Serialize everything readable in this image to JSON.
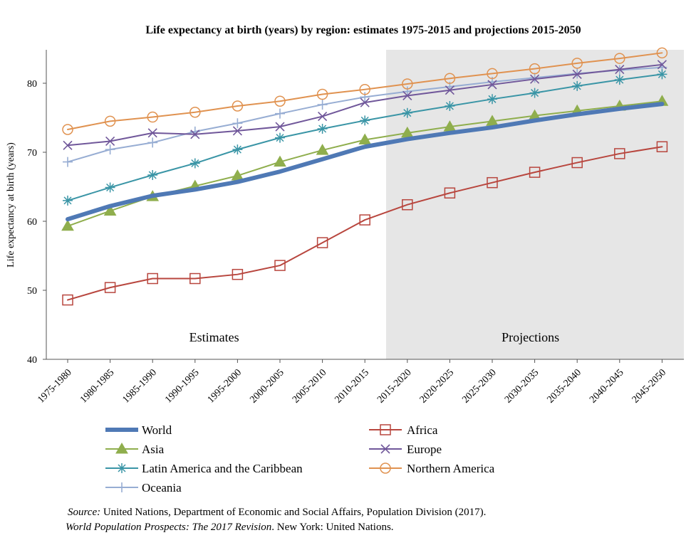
{
  "chart_data": {
    "type": "line",
    "title": "Life expectancy at birth (years) by region: estimates 1975-2015 and projections 2015-2050",
    "ylabel": "Life expectancy at birth (years)",
    "xlabel": "",
    "ylim": [
      40,
      85
    ],
    "yticks": [
      40,
      50,
      60,
      70,
      80
    ],
    "categories": [
      "1975-1980",
      "1980-1985",
      "1985-1990",
      "1990-1995",
      "1995-2000",
      "2000-2005",
      "2005-2010",
      "2010-2015",
      "2015-2020",
      "2020-2025",
      "2025-2030",
      "2030-2035",
      "2035-2040",
      "2040-2045",
      "2045-2050"
    ],
    "regions": [
      {
        "label": "Estimates",
        "from": 0,
        "to": 7
      },
      {
        "label": "Projections",
        "from": 8,
        "to": 14
      }
    ],
    "legend": "bottom",
    "grid": false,
    "series": [
      {
        "name": "World",
        "color": "#4F79B5",
        "marker": "none",
        "values": [
          60.3,
          62.2,
          63.7,
          64.6,
          65.7,
          67.2,
          69.0,
          70.8,
          71.9,
          72.8,
          73.6,
          74.6,
          75.5,
          76.3,
          77.0
        ]
      },
      {
        "name": "Africa",
        "color": "#B8463E",
        "marker": "square",
        "values": [
          48.6,
          50.4,
          51.7,
          51.7,
          52.3,
          53.6,
          56.9,
          60.2,
          62.4,
          64.1,
          65.6,
          67.1,
          68.5,
          69.8,
          70.8
        ]
      },
      {
        "name": "Asia",
        "color": "#8FAE4D",
        "marker": "triangle",
        "values": [
          59.3,
          61.5,
          63.6,
          65.1,
          66.6,
          68.6,
          70.3,
          71.8,
          72.8,
          73.7,
          74.5,
          75.3,
          76.0,
          76.7,
          77.4
        ]
      },
      {
        "name": "Europe",
        "color": "#70579A",
        "marker": "x",
        "values": [
          71.0,
          71.6,
          72.8,
          72.6,
          73.1,
          73.7,
          75.2,
          77.2,
          78.2,
          79.0,
          79.8,
          80.6,
          81.3,
          82.0,
          82.7
        ]
      },
      {
        "name": "Latin America and the Caribbean",
        "color": "#3A95A6",
        "marker": "asterisk",
        "values": [
          63.0,
          64.9,
          66.7,
          68.4,
          70.4,
          72.1,
          73.4,
          74.6,
          75.7,
          76.7,
          77.7,
          78.6,
          79.6,
          80.5,
          81.3
        ]
      },
      {
        "name": "Northern America",
        "color": "#E09250",
        "marker": "circle",
        "values": [
          73.3,
          74.5,
          75.1,
          75.8,
          76.7,
          77.4,
          78.4,
          79.1,
          79.9,
          80.7,
          81.4,
          82.1,
          82.9,
          83.6,
          84.4
        ]
      },
      {
        "name": "Oceania",
        "color": "#97ADD3",
        "marker": "plus",
        "values": [
          68.6,
          70.4,
          71.4,
          73.0,
          74.2,
          75.6,
          76.9,
          78.0,
          78.8,
          79.5,
          80.2,
          80.8,
          81.4,
          81.9,
          82.3
        ]
      }
    ]
  },
  "source": {
    "label": "Source:",
    "line1": " United Nations, Department of Economic and Social Affairs, Population Division (2017).",
    "title": "World Population Prospects: The 2017 Revision",
    "line2": ". New York: United Nations."
  }
}
